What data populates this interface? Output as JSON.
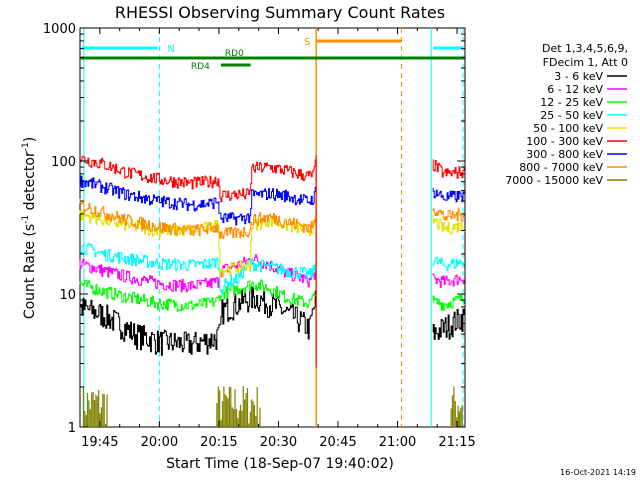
{
  "chart_data": {
    "type": "line",
    "title": "RHESSI Observing Summary Count Rates",
    "xlabel": "Start Time (18-Sep-07 19:40:02)",
    "ylabel_main": "Count Rate (s",
    "ylabel_sup1": "-1",
    "ylabel_mid": " detector",
    "ylabel_sup2": "-1",
    "ylabel_end": ")",
    "yscale": "log",
    "ylim": [
      1,
      1000
    ],
    "xlim_minutes": [
      0,
      97
    ],
    "x_tick_labels": [
      "19:45",
      "20:00",
      "20:15",
      "20:30",
      "20:45",
      "21:00",
      "21:15"
    ],
    "x_tick_minutes": [
      5,
      20,
      35,
      50,
      65,
      80,
      95
    ],
    "y_tick_labels": [
      "1",
      "10",
      "100",
      "1000"
    ],
    "y_tick_values": [
      1,
      10,
      100,
      1000
    ],
    "legend_header": [
      "Det 1,3,4,5,6,9,",
      "FDecim 1, Att 0"
    ],
    "timestamp": "16-Oct-2021 14:19",
    "gap_minutes": [
      59.5,
      88.5
    ],
    "series": [
      {
        "name": "3 - 6 keV",
        "color": "#000000",
        "points": [
          [
            0,
            8
          ],
          [
            6,
            7
          ],
          [
            10,
            6
          ],
          [
            14,
            5
          ],
          [
            20,
            4.4
          ],
          [
            28,
            4.2
          ],
          [
            34,
            4.6
          ],
          [
            35.5,
            5
          ],
          [
            36,
            7.5
          ],
          [
            40,
            8.5
          ],
          [
            44,
            9.5
          ],
          [
            48,
            8.5
          ],
          [
            52,
            7.3
          ],
          [
            56,
            6.2
          ],
          [
            58,
            5.5
          ],
          [
            59.2,
            8
          ],
          [
            59.5,
            9
          ]
        ],
        "points2": [
          [
            89,
            5
          ],
          [
            92,
            5.6
          ],
          [
            97,
            6.8
          ]
        ]
      },
      {
        "name": "6 - 12 keV",
        "color": "#ff00ff",
        "points": [
          [
            0,
            17
          ],
          [
            6,
            15
          ],
          [
            12,
            13.5
          ],
          [
            20,
            12
          ],
          [
            28,
            11.5
          ],
          [
            33,
            12
          ],
          [
            35,
            12.5
          ],
          [
            35.5,
            15
          ],
          [
            40,
            16.5
          ],
          [
            44,
            18.5
          ],
          [
            48,
            16.5
          ],
          [
            52,
            14.5
          ],
          [
            56,
            13.2
          ],
          [
            58,
            12.5
          ],
          [
            59.2,
            14
          ],
          [
            59.5,
            16
          ]
        ],
        "points2": [
          [
            89,
            13
          ],
          [
            92,
            12.3
          ],
          [
            97,
            13.3
          ]
        ]
      },
      {
        "name": "12 - 25 keV",
        "color": "#00ff00",
        "points": [
          [
            0,
            12
          ],
          [
            6,
            10.5
          ],
          [
            12,
            9.5
          ],
          [
            20,
            8.5
          ],
          [
            28,
            8.2
          ],
          [
            33,
            8.5
          ],
          [
            35,
            9
          ],
          [
            35.5,
            10
          ],
          [
            40,
            11
          ],
          [
            44,
            12
          ],
          [
            48,
            11
          ],
          [
            52,
            9.5
          ],
          [
            56,
            8.8
          ],
          [
            58,
            8.5
          ],
          [
            59.2,
            9.5
          ],
          [
            59.5,
            11
          ]
        ],
        "points2": [
          [
            89,
            8.8
          ],
          [
            92,
            8.4
          ],
          [
            97,
            9.3
          ]
        ]
      },
      {
        "name": "25 - 50 keV",
        "color": "#00ffff",
        "points": [
          [
            0,
            23
          ],
          [
            6,
            20
          ],
          [
            12,
            18.5
          ],
          [
            20,
            17
          ],
          [
            28,
            16.5
          ],
          [
            33,
            17
          ],
          [
            35,
            17.5
          ],
          [
            35.5,
            11
          ],
          [
            38,
            12.5
          ],
          [
            40,
            13
          ],
          [
            43,
            17
          ],
          [
            48,
            16
          ],
          [
            52,
            15
          ],
          [
            56,
            14.5
          ],
          [
            58,
            14
          ],
          [
            59.2,
            15
          ],
          [
            59.5,
            17
          ]
        ],
        "points2": [
          [
            89,
            18
          ],
          [
            92,
            16.5
          ],
          [
            97,
            17.5
          ]
        ]
      },
      {
        "name": "50 - 100 keV",
        "color": "#e0e000",
        "points": [
          [
            0,
            40
          ],
          [
            6,
            36
          ],
          [
            12,
            33
          ],
          [
            20,
            30
          ],
          [
            28,
            30
          ],
          [
            33,
            32
          ],
          [
            35,
            33
          ],
          [
            35.5,
            15
          ],
          [
            40,
            16
          ],
          [
            43,
            16.5
          ],
          [
            43.5,
            33
          ],
          [
            48,
            36
          ],
          [
            52,
            33
          ],
          [
            56,
            31
          ],
          [
            58,
            30
          ],
          [
            59.2,
            33
          ],
          [
            59.5,
            36
          ]
        ],
        "points2": [
          [
            89,
            36
          ],
          [
            92,
            31
          ],
          [
            97,
            33
          ]
        ]
      },
      {
        "name": "100 - 300 keV",
        "color": "#ff0000",
        "points": [
          [
            0,
            105
          ],
          [
            6,
            95
          ],
          [
            12,
            82
          ],
          [
            20,
            73
          ],
          [
            28,
            68
          ],
          [
            33,
            70
          ],
          [
            35,
            73
          ],
          [
            35.5,
            55
          ],
          [
            40,
            56
          ],
          [
            43,
            56
          ],
          [
            43.5,
            88
          ],
          [
            48,
            90
          ],
          [
            52,
            85
          ],
          [
            56,
            79
          ],
          [
            58,
            77
          ],
          [
            59.2,
            80
          ],
          [
            59.5,
            100
          ]
        ],
        "points2": [
          [
            89,
            95
          ],
          [
            92,
            80
          ],
          [
            97,
            83
          ]
        ]
      },
      {
        "name": "300 - 800 keV",
        "color": "#0000ff",
        "points": [
          [
            0,
            72
          ],
          [
            6,
            64
          ],
          [
            12,
            56
          ],
          [
            20,
            50
          ],
          [
            28,
            47
          ],
          [
            33,
            48
          ],
          [
            35,
            50
          ],
          [
            35.5,
            37
          ],
          [
            40,
            37
          ],
          [
            43,
            38
          ],
          [
            43.5,
            55
          ],
          [
            48,
            57
          ],
          [
            52,
            55
          ],
          [
            56,
            51
          ],
          [
            58,
            50
          ],
          [
            59.2,
            53
          ],
          [
            59.5,
            60
          ]
        ],
        "points2": [
          [
            89,
            60
          ],
          [
            92,
            53
          ],
          [
            97,
            55
          ]
        ]
      },
      {
        "name": "800 - 7000 keV",
        "color": "#ff8c00",
        "points": [
          [
            0,
            47
          ],
          [
            6,
            41
          ],
          [
            12,
            36
          ],
          [
            20,
            32
          ],
          [
            28,
            30
          ],
          [
            33,
            31
          ],
          [
            35,
            32
          ],
          [
            35.5,
            28
          ],
          [
            40,
            29
          ],
          [
            43,
            30
          ],
          [
            43.5,
            36
          ],
          [
            48,
            38
          ],
          [
            52,
            35
          ],
          [
            56,
            33
          ],
          [
            58,
            31
          ],
          [
            59.2,
            33
          ],
          [
            59.5,
            38
          ]
        ],
        "points2": [
          [
            89,
            45
          ],
          [
            92,
            38
          ],
          [
            97,
            40
          ]
        ]
      },
      {
        "name": "7000 - 15000 keV",
        "color": "#808000",
        "points": [],
        "points2": []
      }
    ],
    "annotations": {
      "saa_label": "S",
      "saa_color": "#ff8c00",
      "saa_range_minutes": [
        59.5,
        81
      ],
      "night_label": "N",
      "night_color": "#00ffff",
      "night_ranges_minutes": [
        [
          0,
          20
        ],
        [
          88.5,
          97
        ]
      ],
      "rd_labels": [
        "RD0",
        "RD4"
      ],
      "rd_color": "#008000",
      "rd_full_range_minutes": [
        0,
        97
      ],
      "rd4_range_minutes": [
        35.5,
        43
      ]
    }
  }
}
